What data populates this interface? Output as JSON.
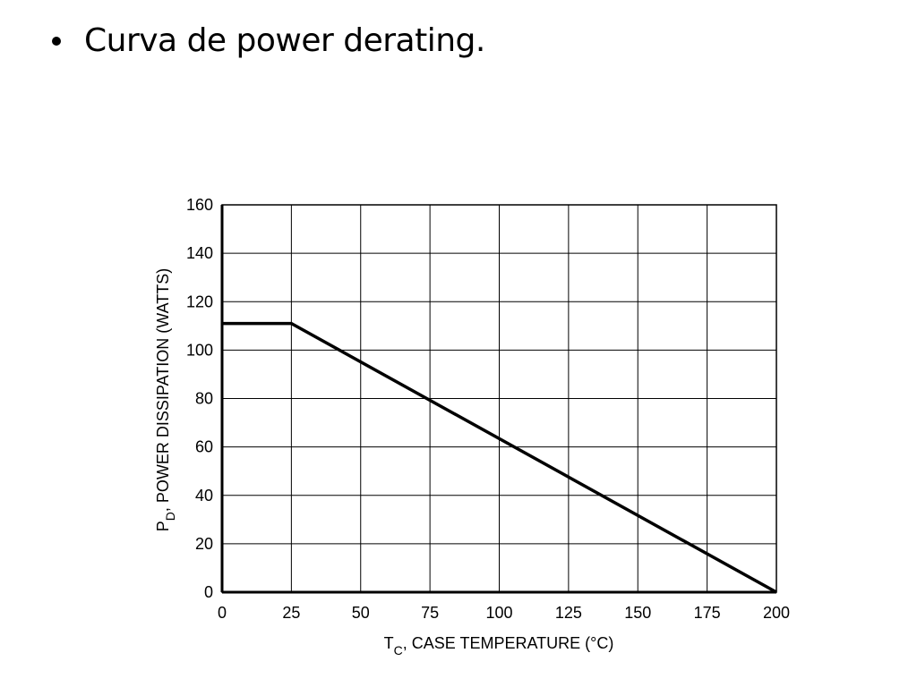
{
  "slide": {
    "title": "Curva de power derating."
  },
  "chart_data": {
    "type": "line",
    "title": "",
    "xlabel_main": "T",
    "xlabel_sub": "C",
    "xlabel_rest": ", CASE TEMPERATURE (°C)",
    "ylabel_main": "P",
    "ylabel_sub": "D",
    "ylabel_rest": ", POWER DISSIPATION (WATTS)",
    "xlim": [
      0,
      200
    ],
    "ylim": [
      0,
      160
    ],
    "x_ticks": [
      0,
      25,
      50,
      75,
      100,
      125,
      150,
      175,
      200
    ],
    "y_ticks": [
      0,
      20,
      40,
      60,
      80,
      100,
      120,
      140,
      160
    ],
    "grid": true,
    "series": [
      {
        "x": [
          0,
          25,
          200
        ],
        "y": [
          111,
          111,
          0
        ]
      }
    ],
    "colors": {
      "line": "#000000",
      "grid": "#000000",
      "axis": "#000000"
    }
  }
}
